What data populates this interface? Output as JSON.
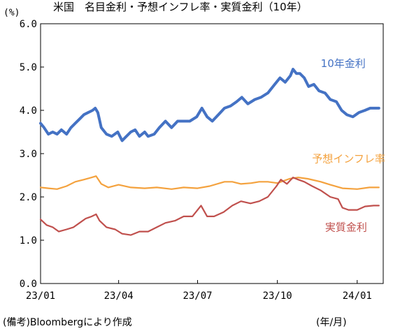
{
  "chart_data": {
    "type": "line",
    "title": "米国　名目金利・予想インフレ率・実質金利（10年）",
    "y_unit": "(%)",
    "x_unit": "(年/月)",
    "source": "(備考)Bloombergにより作成",
    "ylim": [
      0,
      6
    ],
    "yticks": [
      "6.0",
      "5.0",
      "4.0",
      "3.0",
      "2.0",
      "1.0",
      "0.0"
    ],
    "x_ticks": [
      "23/01",
      "23/04",
      "23/07",
      "23/10",
      "24/01"
    ],
    "x_range": [
      "2023-01-01",
      "2024-01-31"
    ],
    "grid": false,
    "series": [
      {
        "name": "10年金利",
        "color": "#4472c4",
        "points": [
          [
            "2023-01-01",
            3.7
          ],
          [
            "2023-01-05",
            3.6
          ],
          [
            "2023-01-10",
            3.45
          ],
          [
            "2023-01-15",
            3.5
          ],
          [
            "2023-01-20",
            3.45
          ],
          [
            "2023-01-25",
            3.55
          ],
          [
            "2023-01-31",
            3.45
          ],
          [
            "2023-02-05",
            3.6
          ],
          [
            "2023-02-10",
            3.7
          ],
          [
            "2023-02-15",
            3.8
          ],
          [
            "2023-02-20",
            3.9
          ],
          [
            "2023-02-25",
            3.95
          ],
          [
            "2023-03-02",
            4.0
          ],
          [
            "2023-03-05",
            4.05
          ],
          [
            "2023-03-08",
            3.95
          ],
          [
            "2023-03-12",
            3.6
          ],
          [
            "2023-03-18",
            3.45
          ],
          [
            "2023-03-24",
            3.4
          ],
          [
            "2023-03-31",
            3.5
          ],
          [
            "2023-04-05",
            3.3
          ],
          [
            "2023-04-10",
            3.4
          ],
          [
            "2023-04-15",
            3.5
          ],
          [
            "2023-04-20",
            3.55
          ],
          [
            "2023-04-25",
            3.4
          ],
          [
            "2023-05-01",
            3.5
          ],
          [
            "2023-05-05",
            3.4
          ],
          [
            "2023-05-12",
            3.45
          ],
          [
            "2023-05-18",
            3.6
          ],
          [
            "2023-05-25",
            3.75
          ],
          [
            "2023-06-01",
            3.6
          ],
          [
            "2023-06-08",
            3.75
          ],
          [
            "2023-06-15",
            3.75
          ],
          [
            "2023-06-22",
            3.75
          ],
          [
            "2023-06-30",
            3.85
          ],
          [
            "2023-07-06",
            4.05
          ],
          [
            "2023-07-12",
            3.85
          ],
          [
            "2023-07-18",
            3.75
          ],
          [
            "2023-07-25",
            3.9
          ],
          [
            "2023-08-01",
            4.05
          ],
          [
            "2023-08-08",
            4.1
          ],
          [
            "2023-08-15",
            4.2
          ],
          [
            "2023-08-21",
            4.3
          ],
          [
            "2023-08-28",
            4.15
          ],
          [
            "2023-09-05",
            4.25
          ],
          [
            "2023-09-12",
            4.3
          ],
          [
            "2023-09-20",
            4.4
          ],
          [
            "2023-09-28",
            4.6
          ],
          [
            "2023-10-04",
            4.75
          ],
          [
            "2023-10-10",
            4.65
          ],
          [
            "2023-10-16",
            4.8
          ],
          [
            "2023-10-19",
            4.95
          ],
          [
            "2023-10-23",
            4.85
          ],
          [
            "2023-10-27",
            4.85
          ],
          [
            "2023-11-01",
            4.75
          ],
          [
            "2023-11-06",
            4.55
          ],
          [
            "2023-11-12",
            4.6
          ],
          [
            "2023-11-18",
            4.45
          ],
          [
            "2023-11-25",
            4.4
          ],
          [
            "2023-12-01",
            4.25
          ],
          [
            "2023-12-08",
            4.2
          ],
          [
            "2023-12-14",
            4.0
          ],
          [
            "2023-12-20",
            3.9
          ],
          [
            "2023-12-27",
            3.85
          ],
          [
            "2024-01-03",
            3.95
          ],
          [
            "2024-01-10",
            4.0
          ],
          [
            "2024-01-16",
            4.05
          ],
          [
            "2024-01-22",
            4.05
          ],
          [
            "2024-01-26",
            4.05
          ]
        ]
      },
      {
        "name": "予想インフレ率",
        "color": "#f4a23e",
        "points": [
          [
            "2023-01-01",
            2.22
          ],
          [
            "2023-01-10",
            2.2
          ],
          [
            "2023-01-20",
            2.18
          ],
          [
            "2023-01-31",
            2.25
          ],
          [
            "2023-02-10",
            2.35
          ],
          [
            "2023-02-20",
            2.4
          ],
          [
            "2023-03-01",
            2.45
          ],
          [
            "2023-03-06",
            2.48
          ],
          [
            "2023-03-12",
            2.3
          ],
          [
            "2023-03-20",
            2.22
          ],
          [
            "2023-04-01",
            2.28
          ],
          [
            "2023-04-15",
            2.22
          ],
          [
            "2023-05-01",
            2.2
          ],
          [
            "2023-05-15",
            2.22
          ],
          [
            "2023-06-01",
            2.18
          ],
          [
            "2023-06-15",
            2.22
          ],
          [
            "2023-07-01",
            2.2
          ],
          [
            "2023-07-15",
            2.25
          ],
          [
            "2023-08-01",
            2.35
          ],
          [
            "2023-08-10",
            2.35
          ],
          [
            "2023-08-20",
            2.3
          ],
          [
            "2023-09-01",
            2.32
          ],
          [
            "2023-09-10",
            2.35
          ],
          [
            "2023-09-20",
            2.35
          ],
          [
            "2023-10-01",
            2.32
          ],
          [
            "2023-10-15",
            2.42
          ],
          [
            "2023-10-25",
            2.45
          ],
          [
            "2023-11-05",
            2.42
          ],
          [
            "2023-11-20",
            2.35
          ],
          [
            "2023-12-01",
            2.28
          ],
          [
            "2023-12-15",
            2.2
          ],
          [
            "2024-01-01",
            2.18
          ],
          [
            "2024-01-15",
            2.22
          ],
          [
            "2024-01-26",
            2.22
          ]
        ]
      },
      {
        "name": "実質金利",
        "color": "#c0504d",
        "points": [
          [
            "2023-01-01",
            1.48
          ],
          [
            "2023-01-08",
            1.35
          ],
          [
            "2023-01-15",
            1.3
          ],
          [
            "2023-01-22",
            1.2
          ],
          [
            "2023-01-31",
            1.25
          ],
          [
            "2023-02-08",
            1.3
          ],
          [
            "2023-02-15",
            1.4
          ],
          [
            "2023-02-22",
            1.5
          ],
          [
            "2023-03-01",
            1.55
          ],
          [
            "2023-03-06",
            1.6
          ],
          [
            "2023-03-10",
            1.45
          ],
          [
            "2023-03-18",
            1.3
          ],
          [
            "2023-03-28",
            1.25
          ],
          [
            "2023-04-05",
            1.15
          ],
          [
            "2023-04-15",
            1.12
          ],
          [
            "2023-04-25",
            1.2
          ],
          [
            "2023-05-05",
            1.2
          ],
          [
            "2023-05-15",
            1.3
          ],
          [
            "2023-05-25",
            1.4
          ],
          [
            "2023-06-05",
            1.45
          ],
          [
            "2023-06-15",
            1.55
          ],
          [
            "2023-06-25",
            1.55
          ],
          [
            "2023-07-05",
            1.8
          ],
          [
            "2023-07-12",
            1.55
          ],
          [
            "2023-07-20",
            1.55
          ],
          [
            "2023-07-31",
            1.65
          ],
          [
            "2023-08-10",
            1.8
          ],
          [
            "2023-08-20",
            1.9
          ],
          [
            "2023-08-31",
            1.85
          ],
          [
            "2023-09-10",
            1.9
          ],
          [
            "2023-09-20",
            2.0
          ],
          [
            "2023-09-30",
            2.25
          ],
          [
            "2023-10-05",
            2.4
          ],
          [
            "2023-10-12",
            2.3
          ],
          [
            "2023-10-19",
            2.45
          ],
          [
            "2023-10-25",
            2.4
          ],
          [
            "2023-11-01",
            2.35
          ],
          [
            "2023-11-10",
            2.25
          ],
          [
            "2023-11-20",
            2.15
          ],
          [
            "2023-12-01",
            2.0
          ],
          [
            "2023-12-10",
            1.95
          ],
          [
            "2023-12-15",
            1.75
          ],
          [
            "2023-12-22",
            1.7
          ],
          [
            "2024-01-01",
            1.7
          ],
          [
            "2024-01-10",
            1.78
          ],
          [
            "2024-01-20",
            1.8
          ],
          [
            "2024-01-26",
            1.8
          ]
        ]
      }
    ]
  }
}
